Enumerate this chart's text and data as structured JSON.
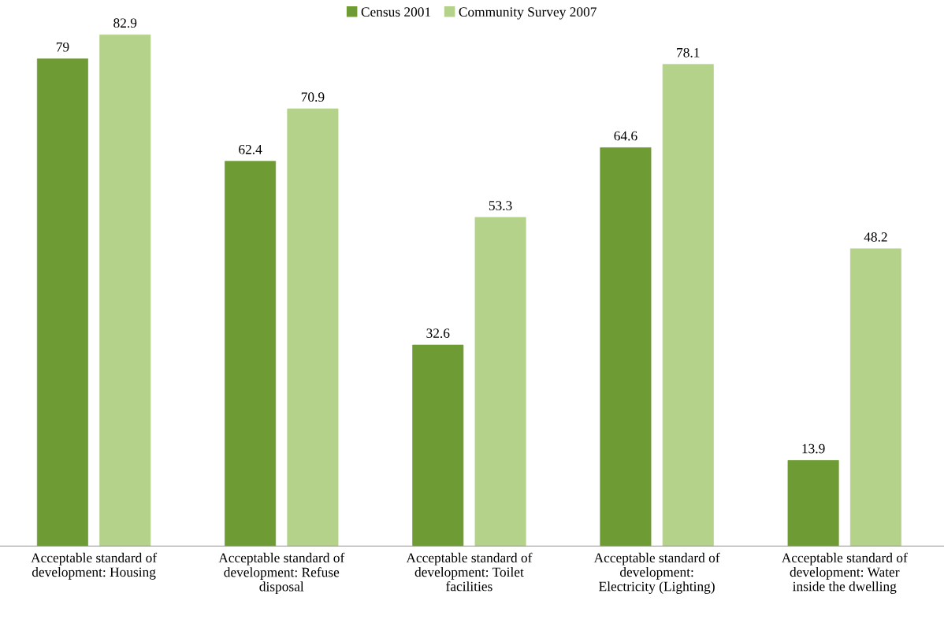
{
  "chart_data": {
    "type": "bar",
    "categories": [
      "Acceptable standard of\ndevelopment: Housing",
      "Acceptable standard of\ndevelopment: Refuse\ndisposal",
      "Acceptable standard of\ndevelopment: Toilet\nfacilities",
      "Acceptable standard of\ndevelopment:\nElectricity (Lighting)",
      "Acceptable standard of\ndevelopment: Water\ninside the dwelling"
    ],
    "series": [
      {
        "name": "Census 2001",
        "color": "#6f9b34",
        "values": [
          79,
          62.4,
          32.6,
          64.6,
          13.9
        ]
      },
      {
        "name": "Community Survey 2007",
        "color": "#b4d28a",
        "values": [
          82.9,
          70.9,
          53.3,
          78.1,
          48.2
        ]
      }
    ],
    "data_labels": true,
    "legend": "top",
    "grid": false
  }
}
